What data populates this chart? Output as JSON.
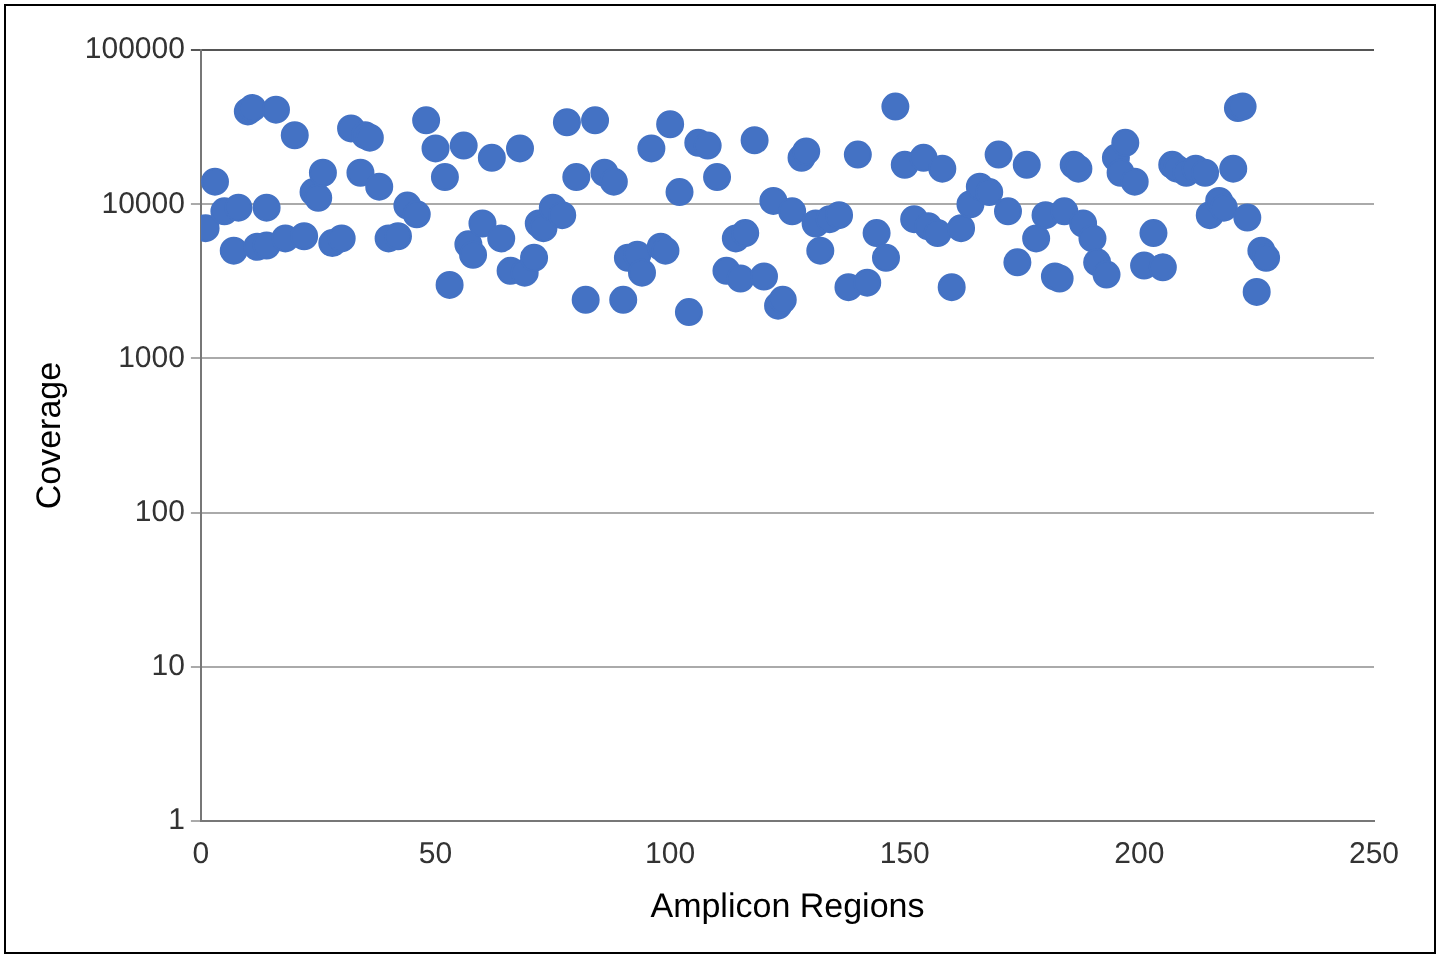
{
  "chart_data": {
    "type": "scatter",
    "xlabel": "Amplicon Regions",
    "ylabel": "Coverage",
    "log": "y",
    "grid": "y",
    "legend": false,
    "marker": "circle",
    "xlim": [
      0,
      250
    ],
    "xticks": [
      0,
      50,
      100,
      150,
      200,
      250
    ],
    "ylim": [
      1,
      100000
    ],
    "yticks": [
      1,
      10,
      100,
      1000,
      10000,
      100000
    ],
    "series": [
      {
        "color": "#4472c4",
        "x": [
          1,
          3,
          5,
          7,
          8,
          10,
          11,
          12,
          14,
          14,
          16,
          18,
          20,
          22,
          24,
          25,
          26,
          28,
          30,
          32,
          34,
          35,
          36,
          38,
          40,
          42,
          44,
          46,
          48,
          50,
          52,
          53,
          56,
          57,
          58,
          60,
          62,
          64,
          66,
          68,
          69,
          71,
          72,
          73,
          75,
          77,
          78,
          80,
          82,
          84,
          86,
          88,
          90,
          91,
          93,
          94,
          96,
          98,
          99,
          100,
          102,
          104,
          106,
          108,
          110,
          112,
          114,
          115,
          116,
          118,
          120,
          122,
          123,
          124,
          126,
          128,
          129,
          131,
          132,
          134,
          136,
          138,
          140,
          142,
          144,
          146,
          148,
          150,
          152,
          154,
          155,
          157,
          158,
          160,
          162,
          164,
          166,
          168,
          170,
          172,
          174,
          176,
          178,
          180,
          182,
          183,
          184,
          186,
          187,
          188,
          190,
          191,
          193,
          195,
          196,
          197,
          199,
          201,
          203,
          205,
          207,
          208,
          210,
          212,
          214,
          215,
          217,
          218,
          220,
          221,
          222,
          223,
          225,
          226,
          227
        ],
        "values": [
          7000,
          14000,
          9000,
          5000,
          9500,
          40000,
          42000,
          5300,
          5400,
          9500,
          41000,
          6000,
          28000,
          6200,
          12000,
          11000,
          16000,
          5600,
          6000,
          31000,
          16000,
          28000,
          27000,
          13000,
          6000,
          6200,
          9800,
          8600,
          35000,
          23000,
          15000,
          3000,
          24000,
          5500,
          4700,
          7500,
          20000,
          6000,
          3700,
          23000,
          3600,
          4500,
          7500,
          7000,
          9500,
          8500,
          34000,
          15000,
          2400,
          35000,
          16000,
          14000,
          2400,
          4500,
          4700,
          3600,
          23000,
          5300,
          5000,
          33000,
          12000,
          2000,
          25000,
          24000,
          15000,
          3700,
          6000,
          3300,
          6500,
          26000,
          3400,
          10500,
          2200,
          2400,
          9000,
          20000,
          22000,
          7500,
          5000,
          8000,
          8500,
          2900,
          21000,
          3100,
          6500,
          4500,
          43000,
          18000,
          8000,
          20000,
          7200,
          6500,
          17000,
          2900,
          7000,
          10000,
          13000,
          12000,
          21000,
          9000,
          4200,
          18000,
          6000,
          8500,
          3400,
          3300,
          9000,
          18000,
          17000,
          7500,
          6000,
          4200,
          3500,
          20000,
          16000,
          25000,
          14000,
          4000,
          6500,
          3900,
          18000,
          17000,
          16000,
          17000,
          16000,
          8500,
          10500,
          9500,
          17000,
          42000,
          43000,
          8200,
          2700,
          5000,
          4500
        ]
      }
    ]
  }
}
